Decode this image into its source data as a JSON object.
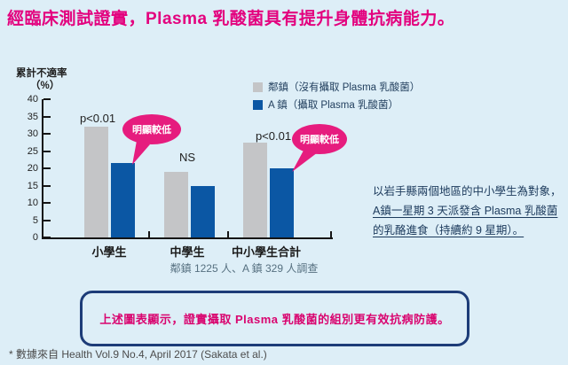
{
  "page": {
    "title": "經臨床測試證實，Plasma 乳酸菌具有提升身體抗病能力。",
    "footer": "* 數據來自 Health Vol.9 No.4, April 2017 (Sakata et al.)"
  },
  "chart_data": {
    "type": "bar",
    "ylabel_line1": "累計不適率",
    "ylabel_line2": "（%）",
    "ylim": [
      0,
      40
    ],
    "ytick_step": 5,
    "grid": false,
    "legend_position": "top-right",
    "categories": [
      "小學生",
      "中學生",
      "中小學生合計"
    ],
    "series": [
      {
        "name": "鄰鎮（沒有攝取 Plasma 乳酸菌）",
        "color": "#c4c5c7",
        "values": [
          32,
          19,
          27.5
        ]
      },
      {
        "name": "A 鎮（攝取 Plasma 乳酸菌）",
        "color": "#0b57a4",
        "values": [
          21.5,
          15,
          20
        ]
      }
    ],
    "annotations": [
      {
        "label": "p<0.01",
        "group": "小學生"
      },
      {
        "label": "NS",
        "group": "中學生"
      },
      {
        "label": "p<0.01",
        "group": "中小學生合計"
      }
    ],
    "callouts": [
      {
        "label": "明顯較低",
        "points_to": "小學生 A 鎮 bar"
      },
      {
        "label": "明顯較低",
        "points_to": "中小學生合計 A 鎮 bar"
      }
    ],
    "sample_note": "鄰鎮 1225 人、A 鎮 329 人調查"
  },
  "side_note": {
    "text_plain": "以岩手縣兩個地區的中小學生為對象，",
    "text_underlined": "A鎮一星期 3 天派發含 Plasma 乳酸菌的乳酪進食（持續約 9 星期）。"
  },
  "conclusion_box": {
    "text": "上述圖表顯示，證實攝取 Plasma 乳酸菌的組別更有效抗病防護。"
  },
  "colors": {
    "background": "#ddeef7",
    "accent_magenta": "#e3017e",
    "bar_gray": "#c4c5c7",
    "bar_blue": "#0b57a4",
    "callout_pink": "#e61c7e",
    "box_border_navy": "#1d3c78"
  }
}
